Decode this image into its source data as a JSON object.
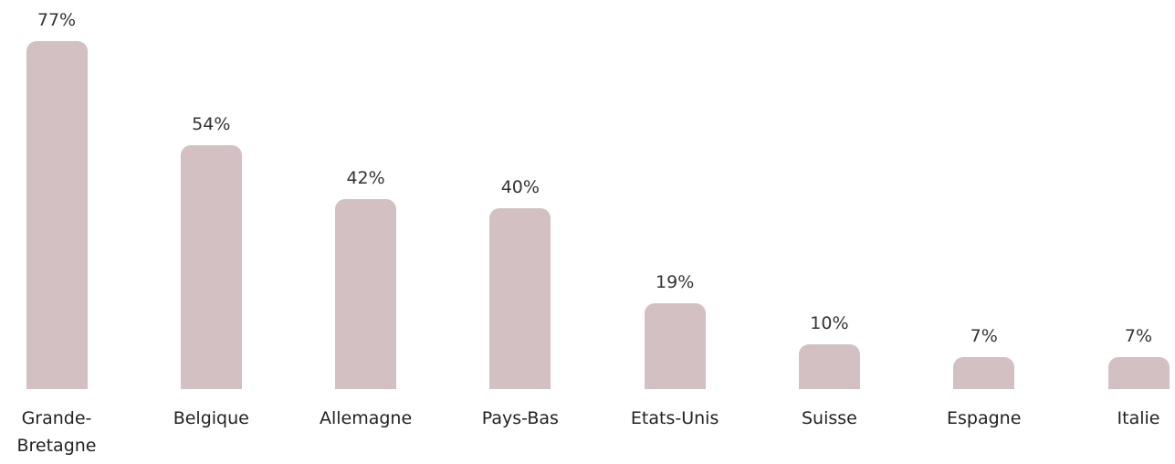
{
  "chart_data": {
    "type": "bar",
    "categories": [
      "Grande-Bretagne",
      "Belgique",
      "Allemagne",
      "Pays-Bas",
      "Etats-Unis",
      "Suisse",
      "Espagne",
      "Italie"
    ],
    "values": [
      77,
      54,
      42,
      40,
      19,
      10,
      7,
      7
    ],
    "value_labels": [
      "77%",
      "54%",
      "42%",
      "40%",
      "19%",
      "10%",
      "7%",
      "7%"
    ],
    "color": "#d3c0c3"
  }
}
